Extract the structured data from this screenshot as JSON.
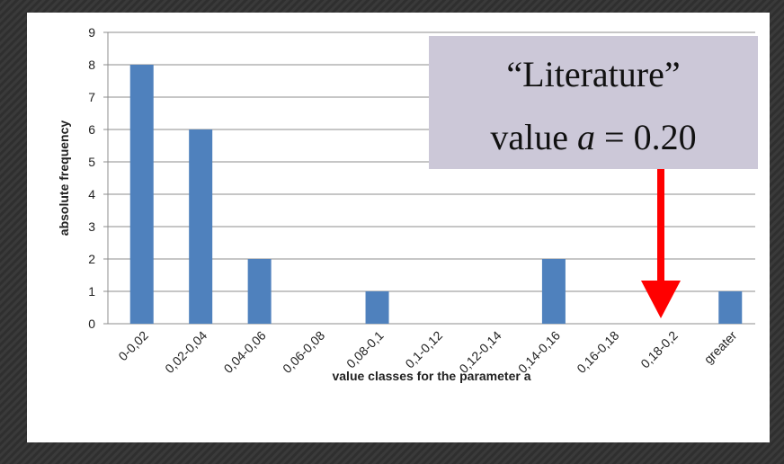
{
  "chart_data": {
    "type": "bar",
    "categories": [
      "0-0,02",
      "0,02-0,04",
      "0,04-0,06",
      "0,06-0,08",
      "0,08-0,1",
      "0,1-0,12",
      "0,12-0,14",
      "0,14-0,16",
      "0,16-0,18",
      "0,18-0,2",
      "greater"
    ],
    "values": [
      8,
      6,
      2,
      0,
      1,
      0,
      0,
      2,
      0,
      0,
      1
    ],
    "color": "#4f81bd",
    "ylim": [
      0,
      9
    ],
    "yticks": [
      0,
      1,
      2,
      3,
      4,
      5,
      6,
      7,
      8,
      9
    ],
    "grid": true,
    "y_label": "absolute frequency",
    "x_label": "value classes for the parameter a",
    "annotation": {
      "line1": "“Literature”",
      "line2_prefix": "value",
      "line2_var": "a",
      "line2_suffix": "= 0.20"
    }
  }
}
